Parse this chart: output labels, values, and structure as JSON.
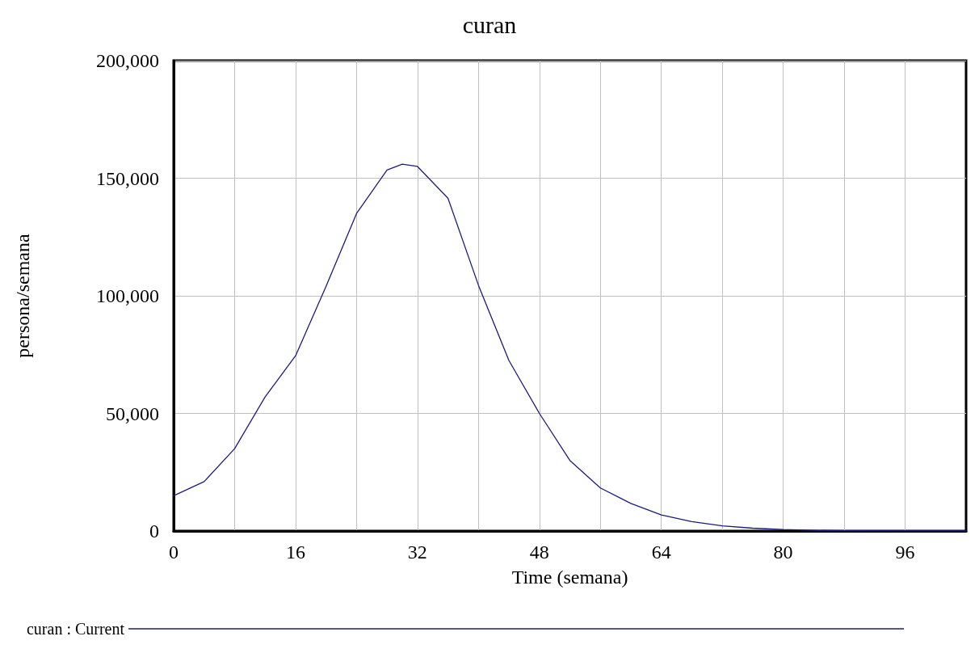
{
  "chart_data": {
    "type": "line",
    "title": "curan",
    "xlabel": "Time (semana)",
    "ylabel": "persona/semana",
    "x": [
      0,
      4,
      8,
      12,
      16,
      20,
      24,
      28,
      30,
      32,
      36,
      40,
      44,
      48,
      52,
      56,
      60,
      64,
      68,
      72,
      76,
      80,
      84,
      88,
      96,
      104
    ],
    "series": [
      {
        "name": "curan : Current",
        "color": "#1c1c80",
        "values": [
          15000,
          21000,
          35000,
          57000,
          74500,
          104000,
          135000,
          153500,
          156000,
          155000,
          141500,
          104500,
          72500,
          50000,
          30000,
          18300,
          11700,
          6800,
          4000,
          2200,
          1200,
          600,
          300,
          100,
          0,
          0
        ]
      }
    ],
    "xlim": [
      0,
      104
    ],
    "xticks": [
      0,
      {
        "value": 8,
        "label": null
      },
      16,
      {
        "value": 24,
        "label": null
      },
      32,
      {
        "value": 40,
        "label": null
      },
      48,
      {
        "value": 56,
        "label": null
      },
      64,
      {
        "value": 72,
        "label": null
      },
      80,
      {
        "value": 88,
        "label": null
      },
      96
    ],
    "ylim": [
      0,
      200000
    ],
    "yticks": [
      0,
      {
        "value": 50000,
        "label": "50,000"
      },
      {
        "value": 100000,
        "label": "100,000"
      },
      {
        "value": 150000,
        "label": "150,000"
      },
      {
        "value": 200000,
        "label": "200,000"
      }
    ],
    "grid": true,
    "legend": "bottom left",
    "marker": "none",
    "line_style": "solid"
  }
}
